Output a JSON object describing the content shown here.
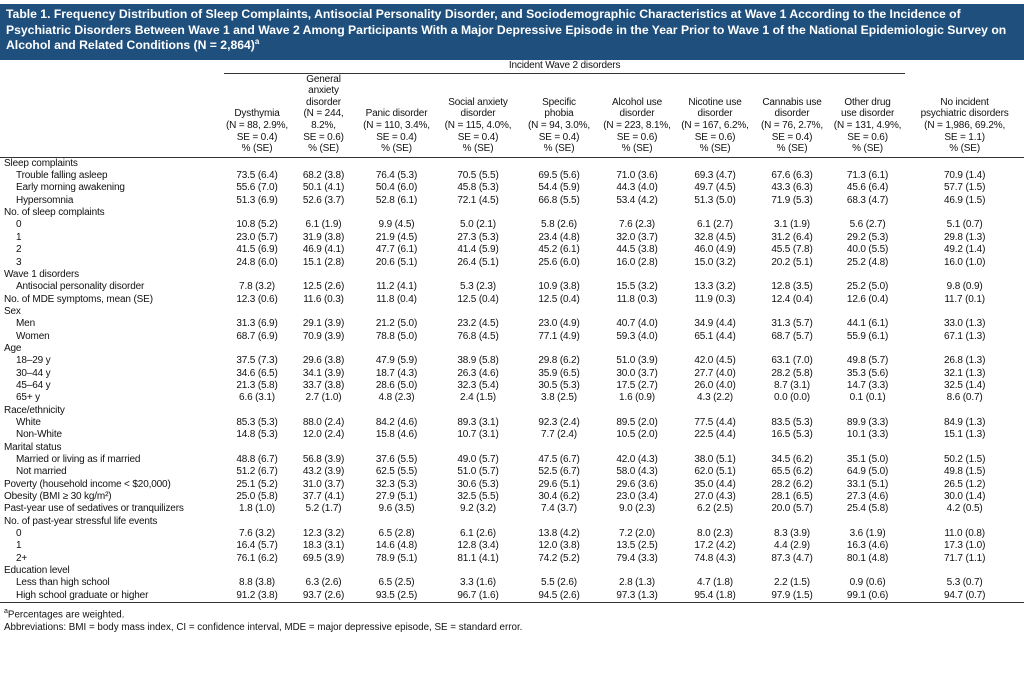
{
  "title": "Table 1. Frequency Distribution of Sleep Complaints, Antisocial Personality Disorder, and Sociodemographic Characteristics at Wave 1 According to the Incidence of Psychiatric Disorders Between Wave 1 and Wave 2 Among Participants With a Major Depressive Episode in the Year Prior to Wave 1 of the National Epidemiologic Survey on Alcohol and Related Conditions (N = 2,864)",
  "title_note": "a",
  "column_group": "Incident Wave 2 disorders",
  "columns": [
    [
      "Dysthymia",
      "(N = 88, 2.9%,",
      "SE = 0.4)",
      "% (SE)"
    ],
    [
      "General",
      "anxiety",
      "disorder",
      "(N = 244, 8.2%,",
      "SE = 0.6)",
      "% (SE)"
    ],
    [
      "Panic disorder",
      "(N = 110, 3.4%,",
      "SE = 0.4)",
      "% (SE)"
    ],
    [
      "Social anxiety",
      "disorder",
      "(N = 115, 4.0%,",
      "SE = 0.4)",
      "% (SE)"
    ],
    [
      "Specific",
      "phobia",
      "(N = 94, 3.0%,",
      "SE = 0.4)",
      "% (SE)"
    ],
    [
      "Alcohol use",
      "disorder",
      "(N = 223, 8.1%,",
      "SE = 0.6)",
      "% (SE)"
    ],
    [
      "Nicotine use",
      "disorder",
      "(N = 167, 6.2%,",
      "SE = 0.6)",
      "% (SE)"
    ],
    [
      "Cannabis use",
      "disorder",
      "(N = 76, 2.7%,",
      "SE = 0.4)",
      "% (SE)"
    ],
    [
      "Other drug",
      "use disorder",
      "(N = 131, 4.9%,",
      "SE = 0.6)",
      "% (SE)"
    ],
    [
      "No incident",
      "psychiatric disorders",
      "(N = 1,986, 69.2%,",
      "SE = 1.1)",
      "% (SE)"
    ]
  ],
  "sections": [
    {
      "label": "Sleep complaints",
      "rows": [
        {
          "label": "Trouble falling asleep",
          "values": [
            "73.5 (6.4)",
            "68.2 (3.8)",
            "76.4 (5.3)",
            "70.5 (5.5)",
            "69.5 (5.6)",
            "71.0 (3.6)",
            "69.3 (4.7)",
            "67.6 (6.3)",
            "71.3 (6.1)",
            "70.9 (1.4)"
          ]
        },
        {
          "label": "Early morning awakening",
          "values": [
            "55.6 (7.0)",
            "50.1 (4.1)",
            "50.4 (6.0)",
            "45.8 (5.3)",
            "54.4 (5.9)",
            "44.3 (4.0)",
            "49.7 (4.5)",
            "43.3 (6.3)",
            "45.6 (6.4)",
            "57.7 (1.5)"
          ]
        },
        {
          "label": "Hypersomnia",
          "values": [
            "51.3 (6.9)",
            "52.6 (3.7)",
            "52.8 (6.1)",
            "72.1 (4.5)",
            "66.8 (5.5)",
            "53.4 (4.2)",
            "51.3 (5.0)",
            "71.9 (5.3)",
            "68.3 (4.7)",
            "46.9 (1.5)"
          ]
        }
      ]
    },
    {
      "label": "No. of sleep complaints",
      "rows": [
        {
          "label": "0",
          "values": [
            "10.8 (5.2)",
            "6.1 (1.9)",
            "9.9 (4.5)",
            "5.0 (2.1)",
            "5.8 (2.6)",
            "7.6 (2.3)",
            "6.1 (2.7)",
            "3.1 (1.9)",
            "5.6 (2.7)",
            "5.1 (0.7)"
          ]
        },
        {
          "label": "1",
          "values": [
            "23.0 (5.7)",
            "31.9 (3.8)",
            "21.9 (4.5)",
            "27.3 (5.3)",
            "23.4 (4.8)",
            "32.0 (3.7)",
            "32.8 (4.5)",
            "31.2 (6.4)",
            "29.2 (5.3)",
            "29.8 (1.3)"
          ]
        },
        {
          "label": "2",
          "values": [
            "41.5 (6.9)",
            "46.9 (4.1)",
            "47.7 (6.1)",
            "41.4 (5.9)",
            "45.2 (6.1)",
            "44.5 (3.8)",
            "46.0 (4.9)",
            "45.5 (7.8)",
            "40.0 (5.5)",
            "49.2 (1.4)"
          ]
        },
        {
          "label": "3",
          "values": [
            "24.8 (6.0)",
            "15.1 (2.8)",
            "20.6 (5.1)",
            "26.4 (5.1)",
            "25.6 (6.0)",
            "16.0 (2.8)",
            "15.0 (3.2)",
            "20.2 (5.1)",
            "25.2 (4.8)",
            "16.0 (1.0)"
          ]
        }
      ]
    },
    {
      "label": "Wave 1 disorders",
      "rows": [
        {
          "label": "Antisocial personality disorder",
          "values": [
            "7.8 (3.2)",
            "12.5 (2.6)",
            "11.2 (4.1)",
            "5.3 (2.3)",
            "10.9 (3.8)",
            "15.5 (3.2)",
            "13.3 (3.2)",
            "12.8 (3.5)",
            "25.2 (5.0)",
            "9.8 (0.9)"
          ]
        }
      ]
    },
    {
      "label": "No. of MDE symptoms, mean (SE)",
      "values": [
        "12.3 (0.6)",
        "11.6 (0.3)",
        "11.8 (0.4)",
        "12.5 (0.4)",
        "12.5 (0.4)",
        "11.8 (0.3)",
        "11.9 (0.3)",
        "12.4 (0.4)",
        "12.6 (0.4)",
        "11.7 (0.1)"
      ]
    },
    {
      "label": "Sex",
      "rows": [
        {
          "label": "Men",
          "values": [
            "31.3 (6.9)",
            "29.1 (3.9)",
            "21.2 (5.0)",
            "23.2 (4.5)",
            "23.0 (4.9)",
            "40.7 (4.0)",
            "34.9 (4.4)",
            "31.3 (5.7)",
            "44.1 (6.1)",
            "33.0 (1.3)"
          ]
        },
        {
          "label": "Women",
          "values": [
            "68.7 (6.9)",
            "70.9 (3.9)",
            "78.8 (5.0)",
            "76.8 (4.5)",
            "77.1 (4.9)",
            "59.3 (4.0)",
            "65.1 (4.4)",
            "68.7 (5.7)",
            "55.9 (6.1)",
            "67.1 (1.3)"
          ]
        }
      ]
    },
    {
      "label": "Age",
      "rows": [
        {
          "label": "18–29 y",
          "values": [
            "37.5 (7.3)",
            "29.6 (3.8)",
            "47.9 (5.9)",
            "38.9 (5.8)",
            "29.8 (6.2)",
            "51.0 (3.9)",
            "42.0 (4.5)",
            "63.1 (7.0)",
            "49.8 (5.7)",
            "26.8 (1.3)"
          ]
        },
        {
          "label": "30–44 y",
          "values": [
            "34.6 (6.5)",
            "34.1 (3.9)",
            "18.7 (4.3)",
            "26.3 (4.6)",
            "35.9 (6.5)",
            "30.0 (3.7)",
            "27.7 (4.0)",
            "28.2 (5.8)",
            "35.3 (5.6)",
            "32.1 (1.3)"
          ]
        },
        {
          "label": "45–64 y",
          "values": [
            "21.3 (5.8)",
            "33.7 (3.8)",
            "28.6 (5.0)",
            "32.3 (5.4)",
            "30.5 (5.3)",
            "17.5 (2.7)",
            "26.0 (4.0)",
            "8.7 (3.1)",
            "14.7 (3.3)",
            "32.5 (1.4)"
          ]
        },
        {
          "label": "65+ y",
          "values": [
            "6.6 (3.1)",
            "2.7 (1.0)",
            "4.8 (2.3)",
            "2.4 (1.5)",
            "3.8 (2.5)",
            "1.6 (0.9)",
            "4.3 (2.2)",
            "0.0 (0.0)",
            "0.1 (0.1)",
            "8.6 (0.7)"
          ]
        }
      ]
    },
    {
      "label": "Race/ethnicity",
      "rows": [
        {
          "label": "White",
          "values": [
            "85.3 (5.3)",
            "88.0 (2.4)",
            "84.2 (4.6)",
            "89.3 (3.1)",
            "92.3 (2.4)",
            "89.5 (2.0)",
            "77.5 (4.4)",
            "83.5 (5.3)",
            "89.9 (3.3)",
            "84.9 (1.3)"
          ]
        },
        {
          "label": "Non-White",
          "values": [
            "14.8 (5.3)",
            "12.0 (2.4)",
            "15.8 (4.6)",
            "10.7 (3.1)",
            "7.7 (2.4)",
            "10.5 (2.0)",
            "22.5 (4.4)",
            "16.5 (5.3)",
            "10.1 (3.3)",
            "15.1 (1.3)"
          ]
        }
      ]
    },
    {
      "label": "Marital status",
      "rows": [
        {
          "label": "Married or living as if married",
          "values": [
            "48.8 (6.7)",
            "56.8 (3.9)",
            "37.6 (5.5)",
            "49.0 (5.7)",
            "47.5 (6.7)",
            "42.0 (4.3)",
            "38.0 (5.1)",
            "34.5 (6.2)",
            "35.1 (5.0)",
            "50.2 (1.5)"
          ]
        },
        {
          "label": "Not married",
          "values": [
            "51.2 (6.7)",
            "43.2 (3.9)",
            "62.5 (5.5)",
            "51.0 (5.7)",
            "52.5 (6.7)",
            "58.0 (4.3)",
            "62.0 (5.1)",
            "65.5 (6.2)",
            "64.9 (5.0)",
            "49.8 (1.5)"
          ]
        }
      ]
    },
    {
      "label": "Poverty (household income < $20,000)",
      "values": [
        "25.1 (5.2)",
        "31.0 (3.7)",
        "32.3 (5.3)",
        "30.6 (5.3)",
        "29.6 (5.1)",
        "29.6 (3.6)",
        "35.0 (4.4)",
        "28.2 (6.2)",
        "33.1 (5.1)",
        "26.5 (1.2)"
      ]
    },
    {
      "label": "Obesity (BMI ≥ 30 kg/m²)",
      "values": [
        "25.0 (5.8)",
        "37.7 (4.1)",
        "27.9 (5.1)",
        "32.5 (5.5)",
        "30.4 (6.2)",
        "23.0 (3.4)",
        "27.0 (4.3)",
        "28.1 (6.5)",
        "27.3 (4.6)",
        "30.0 (1.4)"
      ]
    },
    {
      "label": "Past-year use of sedatives or tranquilizers",
      "values": [
        "1.8 (1.0)",
        "5.2 (1.7)",
        "9.6 (3.5)",
        "9.2 (3.2)",
        "7.4 (3.7)",
        "9.0 (2.3)",
        "6.2 (2.5)",
        "20.0 (5.7)",
        "25.4 (5.8)",
        "4.2 (0.5)"
      ]
    },
    {
      "label": "No. of past-year stressful life events",
      "rows": [
        {
          "label": "0",
          "values": [
            "7.6 (3.2)",
            "12.3 (3.2)",
            "6.5 (2.8)",
            "6.1 (2.6)",
            "13.8 (4.2)",
            "7.2 (2.0)",
            "8.0 (2.3)",
            "8.3 (3.9)",
            "3.6 (1.9)",
            "11.0 (0.8)"
          ]
        },
        {
          "label": "1",
          "values": [
            "16.4 (5.7)",
            "18.3 (3.1)",
            "14.6 (4.8)",
            "12.8 (3.4)",
            "12.0 (3.8)",
            "13.5 (2.5)",
            "17.2 (4.2)",
            "4.4 (2.9)",
            "16.3 (4.6)",
            "17.3 (1.0)"
          ]
        },
        {
          "label": "2+",
          "values": [
            "76.1 (6.2)",
            "69.5 (3.9)",
            "78.9 (5.1)",
            "81.1 (4.1)",
            "74.2 (5.2)",
            "79.4 (3.3)",
            "74.8 (4.3)",
            "87.3 (4.7)",
            "80.1 (4.8)",
            "71.7 (1.1)"
          ]
        }
      ]
    },
    {
      "label": "Education level",
      "rows": [
        {
          "label": "Less than high school",
          "values": [
            "8.8 (3.8)",
            "6.3 (2.6)",
            "6.5 (2.5)",
            "3.3 (1.6)",
            "5.5 (2.6)",
            "2.8 (1.3)",
            "4.7 (1.8)",
            "2.2 (1.5)",
            "0.9 (0.6)",
            "5.3 (0.7)"
          ]
        },
        {
          "label": "High school graduate or higher",
          "values": [
            "91.2 (3.8)",
            "93.7 (2.6)",
            "93.5 (2.5)",
            "96.7 (1.6)",
            "94.5 (2.6)",
            "97.3 (1.3)",
            "95.4 (1.8)",
            "97.9 (1.5)",
            "99.1 (0.6)",
            "94.7 (0.7)"
          ]
        }
      ]
    }
  ],
  "footnotes": [
    {
      "marker": "a",
      "text": "Percentages are weighted."
    }
  ],
  "abbreviations": "Abbreviations: BMI = body mass index, CI = confidence interval, MDE = major depressive episode, SE = standard error."
}
